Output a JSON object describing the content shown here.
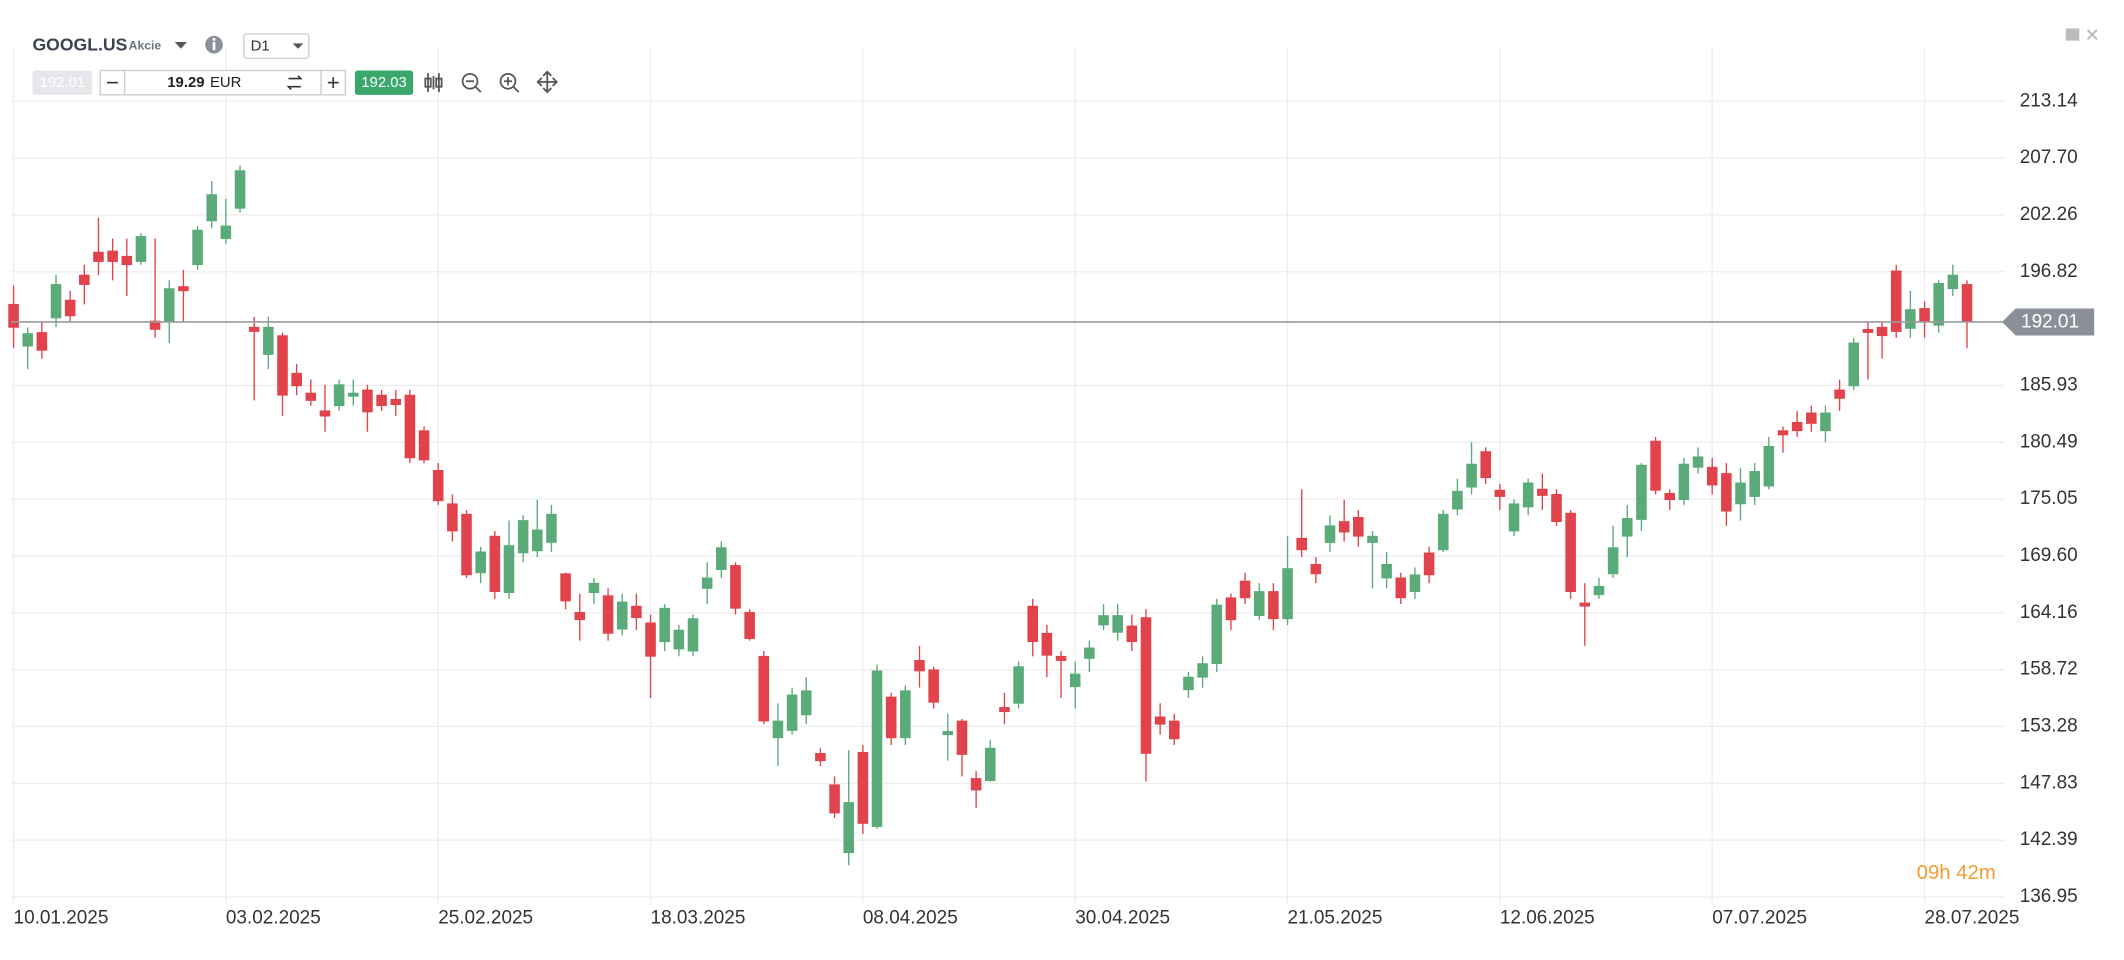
{
  "chart_data": {
    "type": "candlestick",
    "symbol": "GOOGL.US",
    "asset_type": "Akcie",
    "timeframe": "D1",
    "bid": "192.01",
    "ask": "192.03",
    "volume": "19.29",
    "currency": "EUR",
    "countdown": "09h 42m",
    "up_color": "#5aab79",
    "down_color": "#e0434b",
    "grid": true,
    "categories": [
      "10.01.2025",
      null,
      null,
      null,
      null,
      null,
      null,
      null,
      null,
      null,
      null,
      null,
      null,
      null,
      null,
      "03.02.2025",
      null,
      null,
      null,
      null,
      null,
      null,
      null,
      null,
      null,
      null,
      null,
      null,
      null,
      null,
      "25.02.2025",
      null,
      null,
      null,
      null,
      null,
      null,
      null,
      null,
      null,
      null,
      null,
      null,
      null,
      null,
      "18.03.2025",
      null,
      null,
      null,
      null,
      null,
      null,
      null,
      null,
      null,
      null,
      null,
      null,
      null,
      null,
      "08.04.2025",
      null,
      null,
      null,
      null,
      null,
      null,
      null,
      null,
      null,
      null,
      null,
      null,
      null,
      null,
      "30.04.2025",
      null,
      null,
      null,
      null,
      null,
      null,
      null,
      null,
      null,
      null,
      null,
      null,
      null,
      null,
      "21.05.2025",
      null,
      null,
      null,
      null,
      null,
      null,
      null,
      null,
      null,
      null,
      null,
      null,
      null,
      null,
      "12.06.2025",
      null,
      null,
      null,
      null,
      null,
      null,
      null,
      null,
      null,
      null,
      null,
      null,
      null,
      null,
      "07.07.2025",
      null,
      null,
      null,
      null,
      null,
      null,
      null,
      null,
      null,
      null,
      null,
      null,
      null,
      null,
      "28.07.2025",
      null,
      null,
      null
    ],
    "open": [
      193.7,
      189.7,
      191,
      192.4,
      194.1,
      196.5,
      198.7,
      198.8,
      198.3,
      197.8,
      192.1,
      192.1,
      195.4,
      197.5,
      201.7,
      200,
      202.9,
      191.5,
      188.9,
      190.7,
      187.1,
      185.2,
      183.5,
      184,
      184.9,
      185.5,
      185,
      184.6,
      185,
      181.6,
      177.8,
      174.6,
      173.6,
      168,
      171.5,
      166.1,
      169.9,
      170.1,
      170.9,
      167.9,
      164.2,
      166.1,
      165.8,
      162.6,
      164.8,
      163.2,
      161.4,
      160.7,
      160.5,
      166.5,
      168.3,
      168.7,
      164.2,
      160,
      152.2,
      152.9,
      154.4,
      150.7,
      147.7,
      141.2,
      150.8,
      143.7,
      156.1,
      152.2,
      159.6,
      158.7,
      152.5,
      153.8,
      148.3,
      148.1,
      155.1,
      155.5,
      164.8,
      162.2,
      160,
      157.1,
      159.8,
      163,
      162.3,
      162.9,
      163.7,
      154.2,
      153.8,
      156.8,
      158,
      159.3,
      165.6,
      167.2,
      163.9,
      166.2,
      163.6,
      171.3,
      168.8,
      170.9,
      172.9,
      173.3,
      170.9,
      167.5,
      167.5,
      166.2,
      169.9,
      170.2,
      174.1,
      176.2,
      179.6,
      175.9,
      172,
      174.3,
      176,
      175.5,
      173.7,
      165.1,
      165.9,
      167.9,
      171.5,
      173.1,
      180.6,
      175.6,
      175,
      178.1,
      178.1,
      177.5,
      174.6,
      175.3,
      176.3,
      181.6,
      182.4,
      183.3,
      181.6,
      185.5,
      185.9,
      191.3,
      191.5,
      196.9,
      191.4,
      193.3,
      191.7,
      195.2,
      195.6
    ],
    "high": [
      195.5,
      191.5,
      192,
      196.5,
      195,
      197.5,
      202,
      200,
      200,
      200.5,
      200,
      196,
      197,
      201.2,
      205.5,
      203.8,
      207,
      192.5,
      192.5,
      191,
      188,
      186.5,
      186,
      186.5,
      186.5,
      186,
      185.5,
      185.5,
      185.5,
      182,
      178.5,
      175.5,
      174,
      170.5,
      172,
      173,
      173.5,
      175,
      174.5,
      168,
      166,
      167.5,
      166.5,
      166,
      166,
      164,
      165,
      163,
      164,
      169,
      171,
      169,
      164.5,
      160.5,
      155.5,
      157,
      158,
      151.2,
      148.5,
      151,
      151.5,
      159.2,
      156.5,
      157.2,
      161,
      159,
      154.5,
      154,
      149,
      152,
      156.5,
      159.5,
      165.5,
      163,
      160.5,
      159.5,
      161.5,
      165,
      165,
      164,
      164.5,
      155.5,
      154.5,
      158.5,
      160,
      165.5,
      166,
      168,
      167,
      167,
      171.5,
      176,
      169.5,
      173.5,
      175,
      174,
      172,
      170,
      168,
      168.5,
      170.5,
      174,
      177,
      180.5,
      180,
      176.5,
      175,
      177,
      177.5,
      176,
      174,
      167,
      167.5,
      172.5,
      174.5,
      178.5,
      181,
      176,
      179,
      180,
      179,
      178.5,
      178,
      178.5,
      181,
      182,
      183.5,
      184,
      184,
      186.5,
      190.5,
      192,
      192,
      197.5,
      195,
      194,
      196,
      197.5,
      196
    ],
    "low": [
      189.5,
      187.5,
      188.5,
      191.5,
      192,
      193.7,
      196.5,
      196,
      194.5,
      197.5,
      190.5,
      190,
      192,
      197,
      201,
      199.5,
      202.5,
      184.5,
      187.5,
      183,
      185,
      184,
      181.5,
      183.5,
      184,
      181.5,
      183.5,
      183,
      178.5,
      178.5,
      174.5,
      171,
      167.5,
      167,
      165.5,
      165.5,
      169,
      169.5,
      170,
      164.5,
      161.5,
      165,
      161.5,
      162,
      162.5,
      156,
      160.5,
      160,
      160,
      165,
      167.5,
      164,
      161.5,
      153.5,
      149.5,
      152.5,
      153.5,
      149.5,
      144.5,
      140,
      143,
      143.5,
      151.5,
      151.5,
      157,
      155,
      150,
      148.5,
      145.5,
      148,
      153.5,
      155,
      160,
      158,
      156,
      155,
      158.5,
      162.5,
      161.5,
      160.5,
      148,
      152.5,
      151.5,
      156,
      157,
      158.5,
      162.5,
      165,
      163.5,
      162.5,
      163,
      169.5,
      167,
      170,
      171,
      170.5,
      166.5,
      166.5,
      165,
      165.5,
      167,
      170,
      173.5,
      175.5,
      176.5,
      174,
      171.5,
      173.5,
      174,
      172.5,
      165.5,
      161,
      165.5,
      167.5,
      169.5,
      172,
      175.5,
      174,
      174.5,
      177.5,
      175.5,
      172.5,
      173,
      174.5,
      176,
      179.5,
      181,
      181.5,
      180.5,
      183.5,
      185.5,
      186.5,
      188.5,
      190.5,
      190.5,
      190.5,
      191,
      194.5,
      189.5
    ],
    "close": [
      191.5,
      190.9,
      189.3,
      195.6,
      192.6,
      195.6,
      197.8,
      197.8,
      197.5,
      200.2,
      191.3,
      195.2,
      195,
      200.8,
      204.2,
      201.2,
      206.5,
      191.1,
      191.5,
      185,
      185.9,
      184.5,
      183,
      186,
      185.2,
      183.4,
      184,
      184.1,
      179,
      178.8,
      174.9,
      172,
      167.8,
      170,
      166.2,
      170.6,
      173,
      172.1,
      173.6,
      165.3,
      163.5,
      167,
      162.2,
      165.2,
      163.7,
      160,
      164.6,
      162.5,
      163.6,
      167.5,
      170.4,
      164.6,
      161.7,
      153.8,
      153.8,
      156.3,
      156.7,
      150,
      145,
      146,
      144,
      158.6,
      152.2,
      156.7,
      158.6,
      155.6,
      152.8,
      150.6,
      147.2,
      151.2,
      154.7,
      159,
      161.4,
      160.1,
      159.6,
      158.3,
      160.8,
      163.9,
      163.9,
      161.4,
      150.7,
      153.5,
      152.1,
      158,
      159.3,
      164.9,
      163.5,
      165.6,
      166.2,
      163.6,
      168.4,
      170.2,
      167.9,
      172.5,
      171.9,
      171.5,
      171.5,
      168.8,
      165.6,
      167.8,
      167.8,
      173.6,
      175.8,
      178.4,
      177.1,
      175.3,
      174.6,
      176.6,
      175.4,
      172.9,
      166.2,
      164.8,
      166.7,
      170.4,
      173.2,
      178.3,
      175.9,
      175,
      178.4,
      179.1,
      176.4,
      173.9,
      176.6,
      177.7,
      180.1,
      181.2,
      181.6,
      182.3,
      183.3,
      184.7,
      190,
      191,
      190.7,
      191.1,
      193.2,
      192.1,
      195.7,
      196.5,
      192.01
    ],
    "price_line": {
      "value": 192.01,
      "label": "192.01"
    },
    "ylim": [
      136.2,
      218.3
    ],
    "yticks": [
      {
        "value": 213.14,
        "label": "213.14"
      },
      {
        "value": 207.7,
        "label": "207.70"
      },
      {
        "value": 202.26,
        "label": "202.26"
      },
      {
        "value": 196.82,
        "label": "196.82"
      },
      {
        "value": 185.93,
        "label": "185.93"
      },
      {
        "value": 180.49,
        "label": "180.49"
      },
      {
        "value": 175.05,
        "label": "175.05"
      },
      {
        "value": 169.6,
        "label": "169.60"
      },
      {
        "value": 164.16,
        "label": "164.16"
      },
      {
        "value": 158.72,
        "label": "158.72"
      },
      {
        "value": 153.28,
        "label": "153.28"
      },
      {
        "value": 147.83,
        "label": "147.83"
      },
      {
        "value": 142.39,
        "label": "142.39"
      },
      {
        "value": 136.95,
        "label": "136.95"
      }
    ]
  }
}
